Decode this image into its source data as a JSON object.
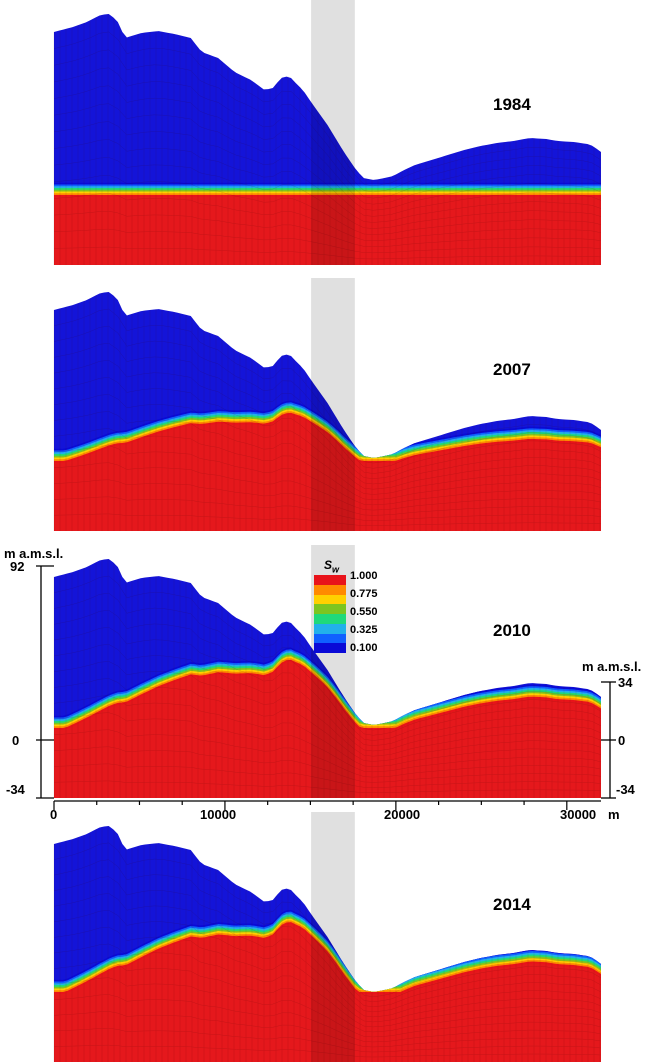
{
  "panels": [
    {
      "year": "1984",
      "wt_rise": 0.0,
      "sat_alt": "low"
    },
    {
      "year": "2007",
      "wt_rise": 0.6,
      "sat_alt": "mid"
    },
    {
      "year": "2010",
      "wt_rise": 0.85,
      "sat_alt": "high"
    },
    {
      "year": "2014",
      "wt_rise": 0.9,
      "sat_alt": "high"
    }
  ],
  "axes": {
    "left_unit": "m a.m.s.l.",
    "left_ticks": [
      "92",
      "0",
      "-34"
    ],
    "right_unit": "m a.m.s.l.",
    "right_ticks": [
      "34",
      "0",
      "-34"
    ],
    "x_ticks": [
      "0",
      "10000",
      "20000",
      "30000"
    ],
    "x_unit": "m"
  },
  "legend": {
    "title_main": "S",
    "title_sub": "w",
    "entries": [
      {
        "label": "1.000",
        "color": "#e8131a"
      },
      {
        "label": "0.775",
        "color": "#ffd000"
      },
      {
        "label": "0.550",
        "color": "#7cc520"
      },
      {
        "label": "0.325",
        "color": "#22b0ea"
      },
      {
        "label": "0.100",
        "color": "#0a0ad6"
      }
    ],
    "band_colors": [
      "#e8131a",
      "#ff8a00",
      "#ffd000",
      "#7cc520",
      "#1fd97a",
      "#22b0ea",
      "#1060ff",
      "#0a0ad6"
    ]
  },
  "colors": {
    "unsaturated": "#1414d8",
    "saturated": "#e5181c",
    "mesh": "#3a0000"
  }
}
